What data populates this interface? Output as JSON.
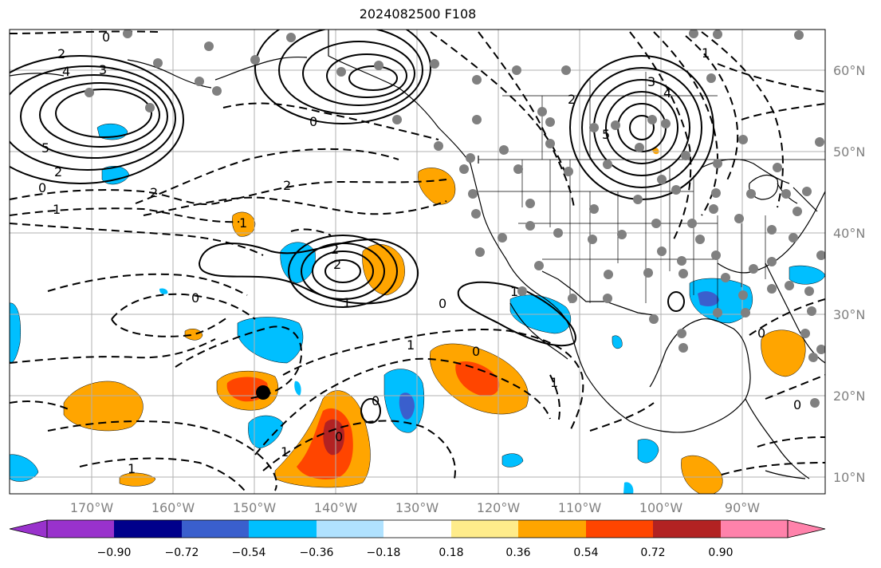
{
  "title": "2024082500 F108",
  "longitude_labels": [
    "170°W",
    "160°W",
    "150°W",
    "140°W",
    "130°W",
    "120°W",
    "110°W",
    "100°W",
    "90°W"
  ],
  "latitude_labels": [
    "60°N",
    "50°N",
    "40°N",
    "30°N",
    "20°N",
    "10°N"
  ],
  "colorbar": {
    "tick_labels": [
      "−0.90",
      "−0.72",
      "−0.54",
      "−0.36",
      "−0.18",
      "0.18",
      "0.36",
      "0.54",
      "0.72",
      "0.90"
    ],
    "colors": [
      "#9932cc",
      "#00008b",
      "#3a5fcd",
      "#00bfff",
      "#b0e2ff",
      "#ffffff",
      "#ffec8b",
      "#ffa500",
      "#ff4500",
      "#b22222",
      "#ff82ab"
    ]
  },
  "contour_labels": [
    "0",
    "2",
    "4",
    "3",
    "5",
    "2",
    "0",
    "1",
    "2",
    "0",
    "2",
    "1",
    "2",
    "2",
    "1",
    "0",
    "0",
    "1",
    "0",
    "0",
    "0",
    "1",
    "1",
    "1",
    "2",
    "3",
    "4",
    "5",
    "1",
    "1",
    "0",
    "0"
  ],
  "station_marker": "black-dot"
}
